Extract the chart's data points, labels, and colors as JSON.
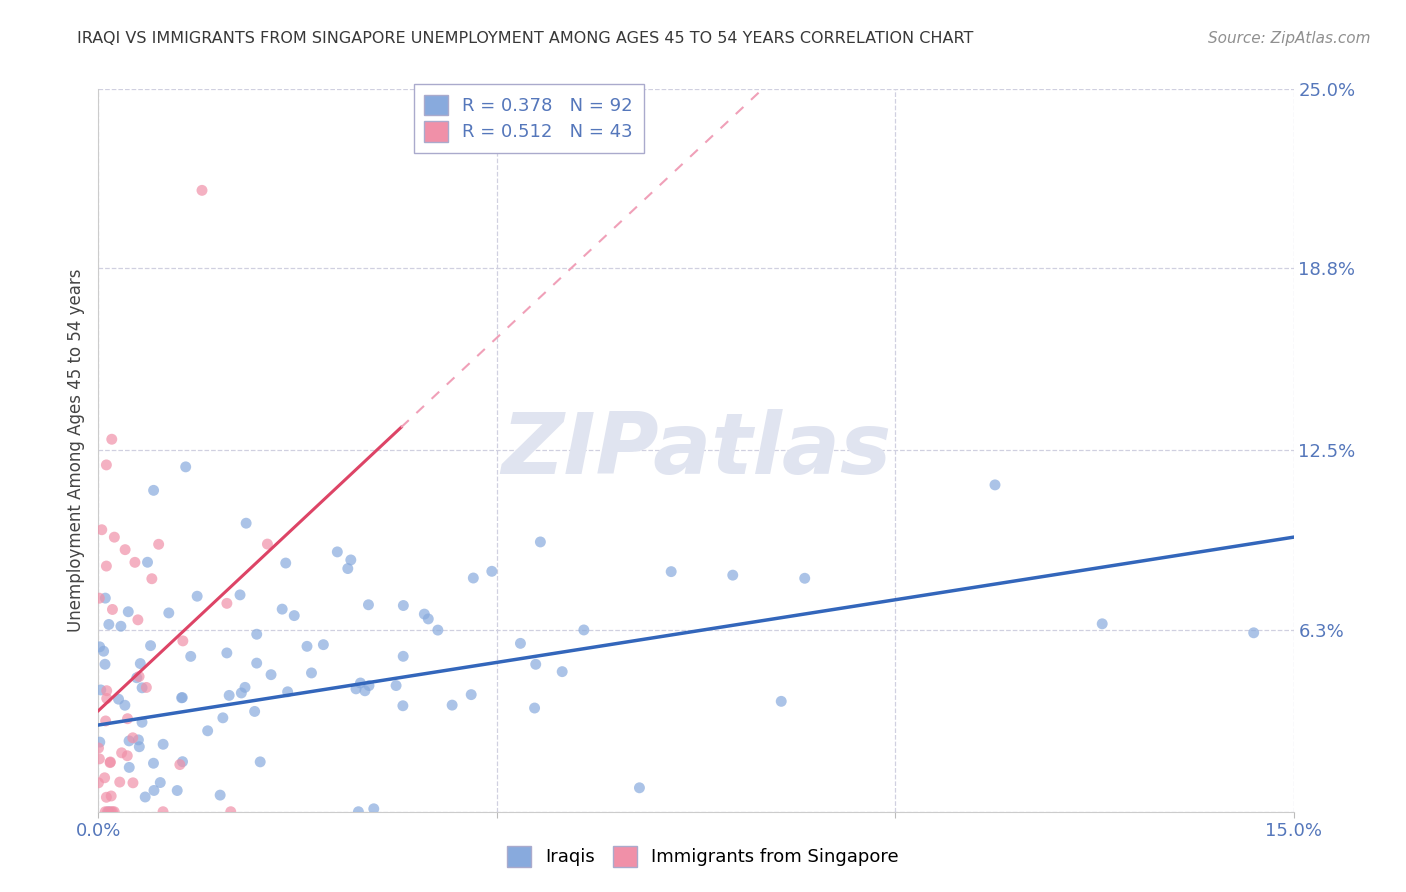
{
  "title": "IRAQI VS IMMIGRANTS FROM SINGAPORE UNEMPLOYMENT AMONG AGES 45 TO 54 YEARS CORRELATION CHART",
  "source": "Source: ZipAtlas.com",
  "ylabel": "Unemployment Among Ages 45 to 54 years",
  "xlim": [
    0.0,
    0.15
  ],
  "ylim": [
    0.0,
    0.25
  ],
  "xtick_positions": [
    0.0,
    0.05,
    0.1,
    0.15
  ],
  "xticklabels": [
    "0.0%",
    "",
    "",
    "15.0%"
  ],
  "ytick_positions": [
    0.0,
    0.063,
    0.125,
    0.188,
    0.25
  ],
  "ytick_labels": [
    "",
    "6.3%",
    "12.5%",
    "18.8%",
    "25.0%"
  ],
  "grid_color": "#d0d0e0",
  "bg_color": "#ffffff",
  "iraqis_R": 0.378,
  "iraqis_N": 92,
  "singapore_R": 0.512,
  "singapore_N": 43,
  "iraqis_color": "#88aadd",
  "singapore_color": "#f090a8",
  "iraqis_line_color": "#3366bb",
  "singapore_line_color": "#dd4466",
  "singapore_line_dashed_color": "#f0a0b8",
  "legend_iraqis": "Iraqis",
  "legend_singapore": "Immigrants from Singapore",
  "title_color": "#383838",
  "tick_color": "#5577bb",
  "watermark_color": "#e0e4f0"
}
